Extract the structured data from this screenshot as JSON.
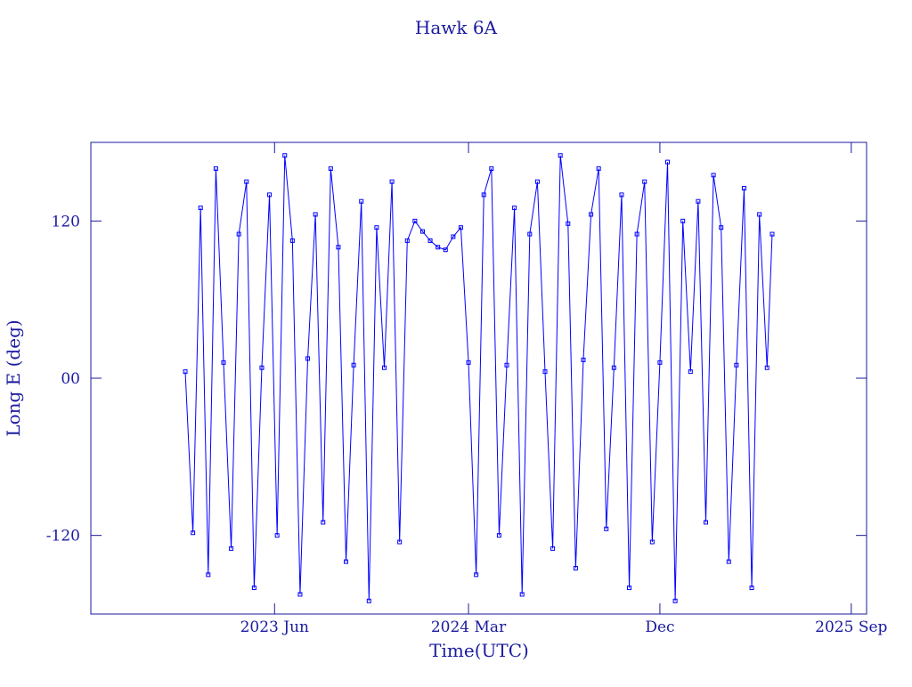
{
  "chart_data": {
    "type": "line",
    "title": "Hawk 6A",
    "xlabel": "Time(UTC)",
    "ylabel": "Long E (deg)",
    "xlim": [
      2022.69,
      2025.73
    ],
    "xticks": [
      {
        "value": 2023.41,
        "label": "2023 Jun"
      },
      {
        "value": 2024.17,
        "label": "2024 Mar"
      },
      {
        "value": 2024.92,
        "label": "Dec"
      },
      {
        "value": 2025.67,
        "label": "2025 Sep"
      }
    ],
    "ylim": [
      -180,
      180
    ],
    "yticks": [
      -120,
      {
        "value": 0,
        "label": "00"
      },
      120
    ],
    "color": "#0000ff",
    "x": [
      2023.06,
      2023.09,
      2023.12,
      2023.15,
      2023.18,
      2023.21,
      2023.24,
      2023.27,
      2023.3,
      2023.33,
      2023.36,
      2023.39,
      2023.42,
      2023.45,
      2023.48,
      2023.51,
      2023.54,
      2023.57,
      2023.6,
      2023.63,
      2023.66,
      2023.69,
      2023.72,
      2023.75,
      2023.78,
      2023.81,
      2023.84,
      2023.87,
      2023.9,
      2023.93,
      2023.96,
      2023.99,
      2024.02,
      2024.05,
      2024.08,
      2024.11,
      2024.14,
      2024.17,
      2024.2,
      2024.23,
      2024.26,
      2024.29,
      2024.32,
      2024.35,
      2024.38,
      2024.41,
      2024.44,
      2024.47,
      2024.5,
      2024.53,
      2024.56,
      2024.59,
      2024.62,
      2024.65,
      2024.68,
      2024.71,
      2024.74,
      2024.77,
      2024.8,
      2024.83,
      2024.86,
      2024.89,
      2024.92,
      2024.95,
      2024.98,
      2025.01,
      2025.04,
      2025.07,
      2025.1,
      2025.13,
      2025.16,
      2025.19,
      2025.22,
      2025.25,
      2025.28,
      2025.31,
      2025.34,
      2025.36
    ],
    "values": [
      5,
      -118,
      130,
      -150,
      160,
      12,
      -130,
      110,
      150,
      -160,
      8,
      140,
      -120,
      170,
      105,
      -165,
      15,
      125,
      -110,
      160,
      100,
      -140,
      10,
      135,
      -170,
      115,
      8,
      150,
      -125,
      105,
      120,
      112,
      105,
      100,
      98,
      108,
      115,
      12,
      -150,
      140,
      160,
      -120,
      10,
      130,
      -165,
      110,
      150,
      5,
      -130,
      170,
      118,
      -145,
      14,
      125,
      160,
      -115,
      8,
      140,
      -160,
      110,
      150,
      -125,
      12,
      165,
      -170,
      120,
      5,
      135,
      -110,
      155,
      115,
      -140,
      10,
      145,
      -160,
      125,
      8,
      110
    ]
  }
}
